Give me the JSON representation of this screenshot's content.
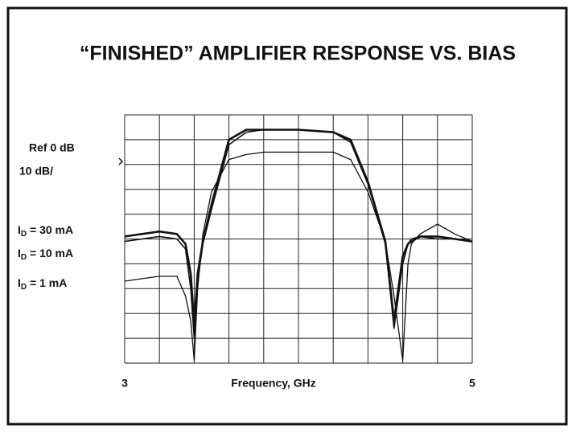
{
  "chart_data": {
    "type": "line",
    "title": "“FINISHED” AMPLIFIER  RESPONSE VS. BIAS",
    "xlabel": "Frequency, GHz",
    "annotations": [
      "Ref 0 dB",
      "10 dB/"
    ],
    "x": [
      3.0,
      3.2,
      3.3,
      3.35,
      3.38,
      3.4,
      3.42,
      3.45,
      3.5,
      3.6,
      3.7,
      3.8,
      4.0,
      4.2,
      4.3,
      4.4,
      4.5,
      4.55,
      4.6,
      4.63,
      4.65,
      4.7,
      4.8,
      4.9,
      5.0
    ],
    "xlim": [
      3,
      5
    ],
    "xticks": [
      3,
      5
    ],
    "ylim": [
      -80,
      20
    ],
    "series": [
      {
        "name": "ID = 30 mA",
        "color": "#111111",
        "line_width": 2.6,
        "values": [
          -29,
          -27,
          -28,
          -32,
          -44,
          -65,
          -44,
          -31,
          -16,
          10,
          14,
          14,
          14,
          13,
          10,
          -7,
          -31,
          -63,
          -37,
          -32,
          -31,
          -29,
          -29,
          -30,
          -31
        ]
      },
      {
        "name": "ID = 10 mA",
        "color": "#111111",
        "line_width": 1.6,
        "values": [
          -31,
          -29,
          -30,
          -34,
          -50,
          -70,
          -47,
          -32,
          -18,
          8,
          13,
          14,
          14,
          13,
          9,
          -8,
          -32,
          -66,
          -40,
          -32,
          -30,
          -29,
          -30,
          -30,
          -31
        ]
      },
      {
        "name": "ID = 1 mA",
        "color": "#111111",
        "line_width": 1.3,
        "values": [
          -47,
          -45,
          -45,
          -53,
          -63,
          -79,
          -50,
          -28,
          -11,
          2,
          4,
          5,
          5,
          5,
          2,
          -11,
          -31,
          -53,
          -79,
          -40,
          -32,
          -28,
          -24,
          -28,
          -31
        ]
      }
    ]
  }
}
